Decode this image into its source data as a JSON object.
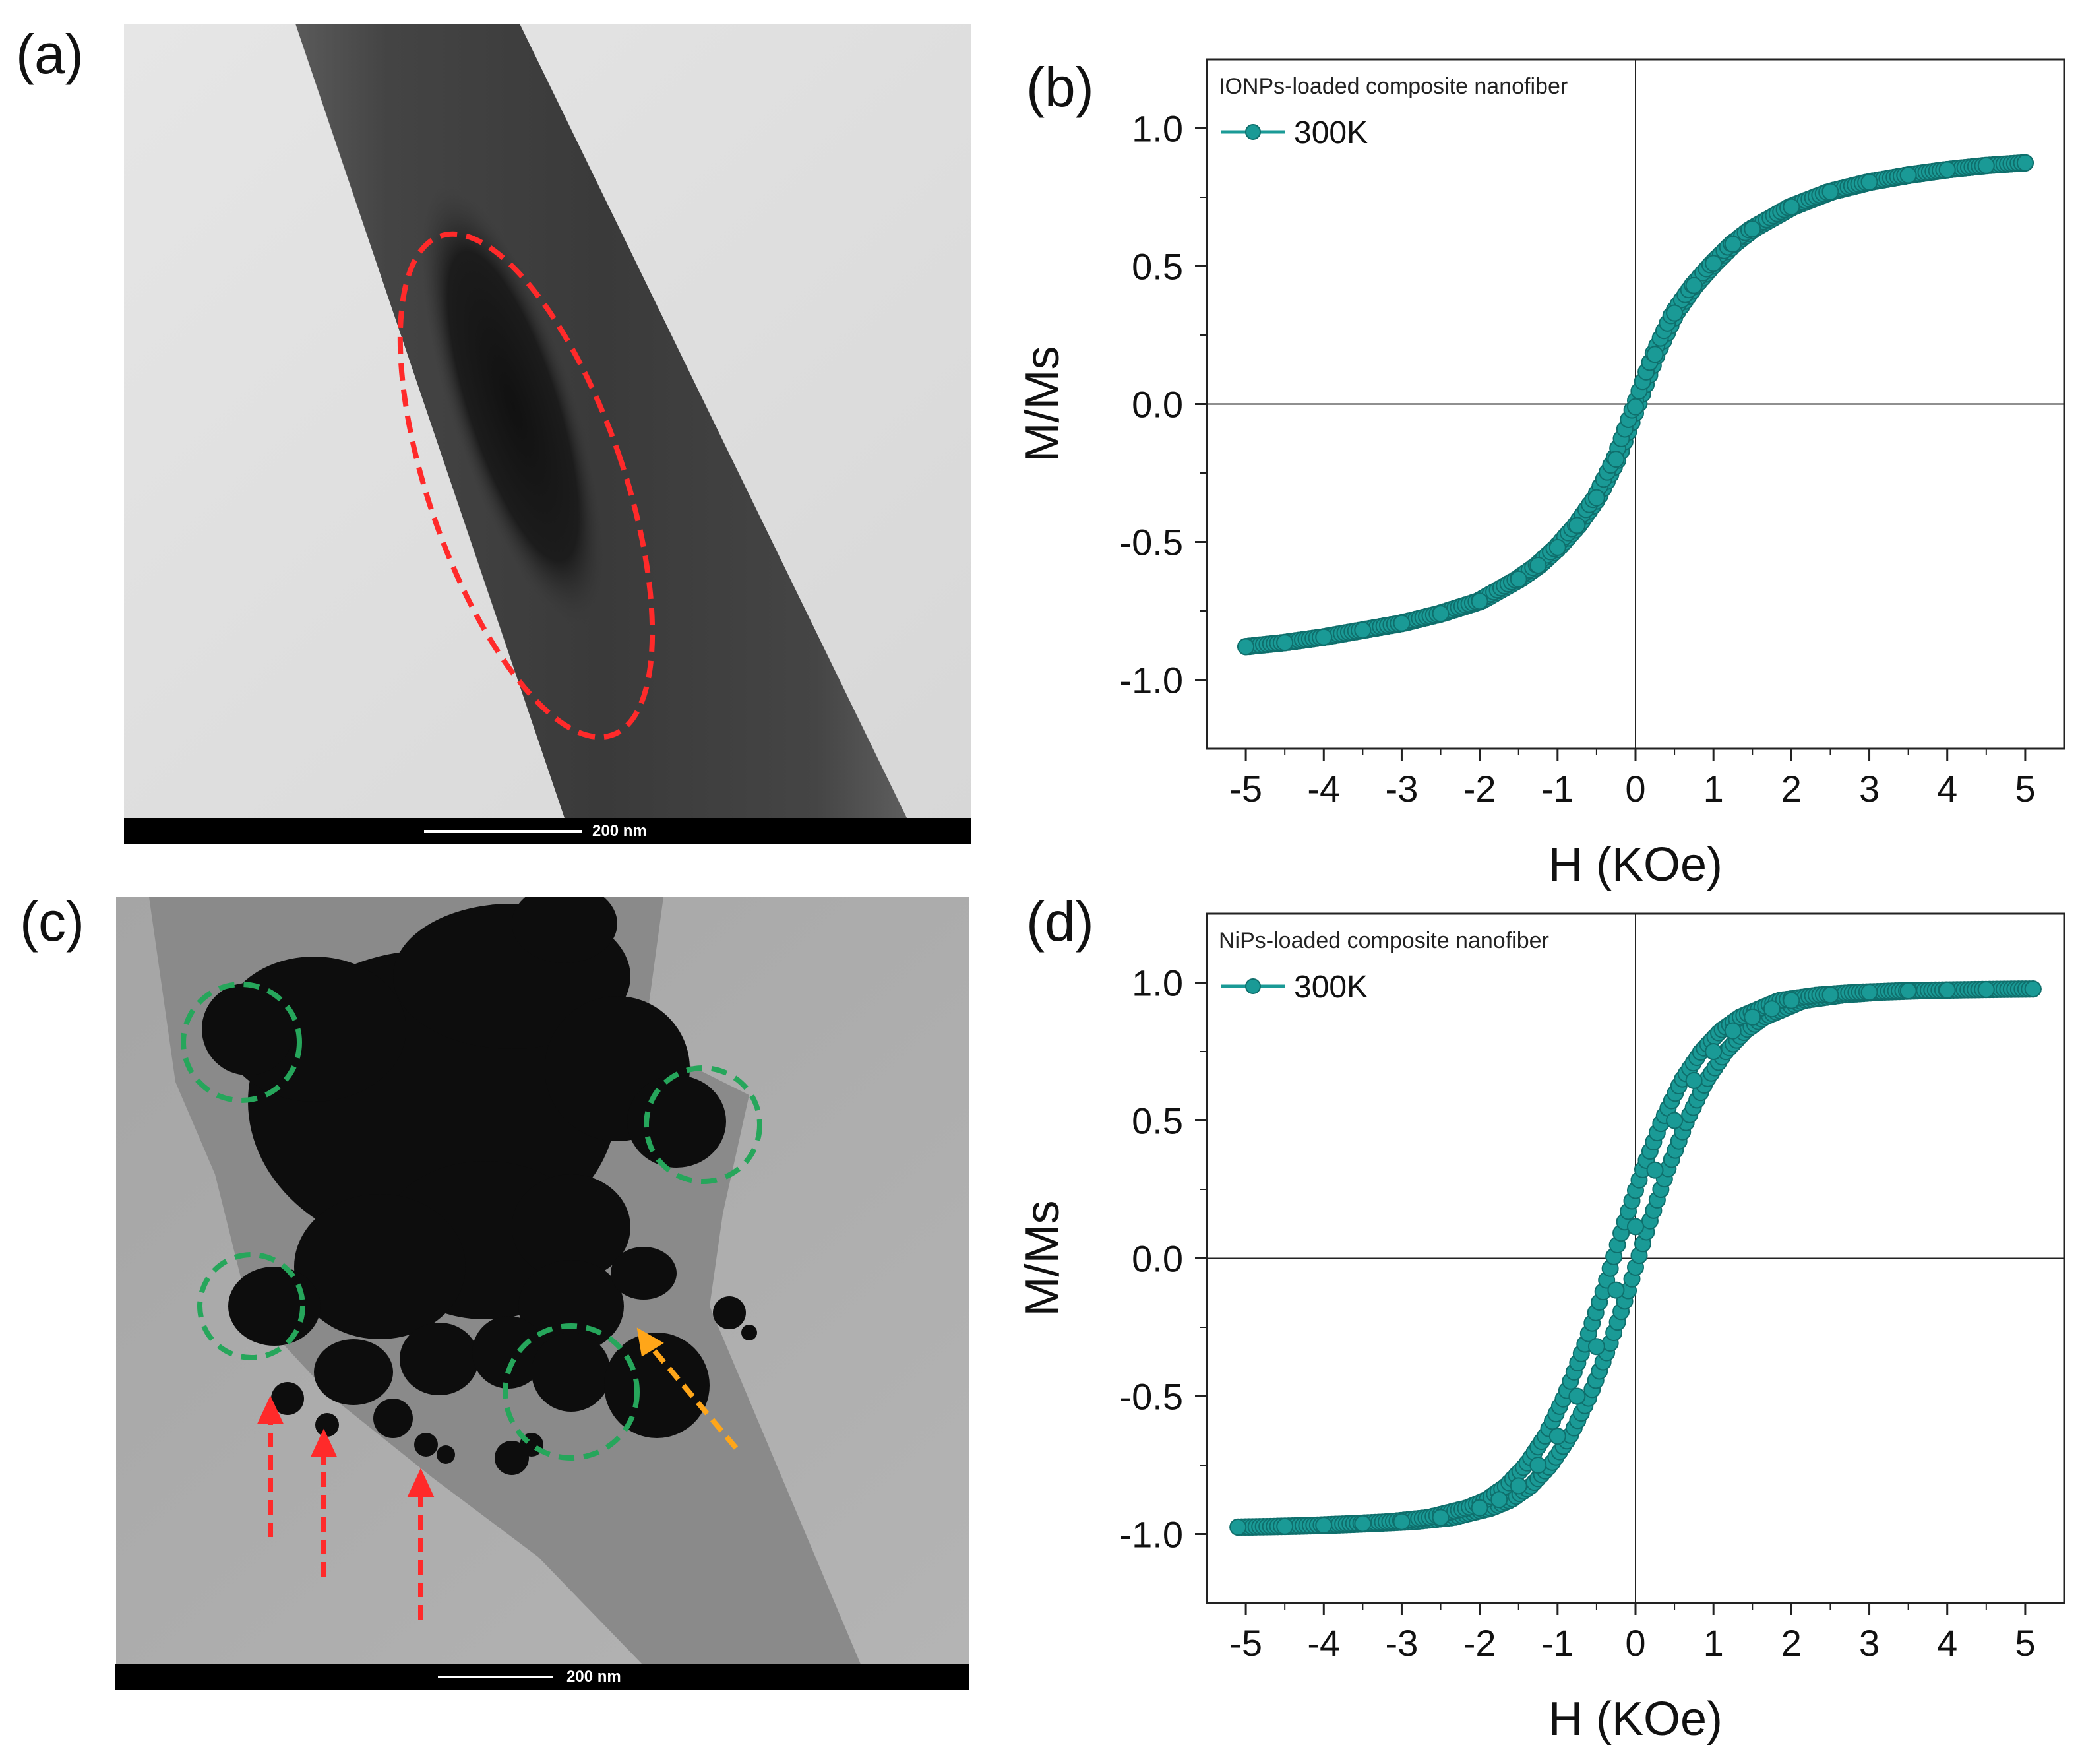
{
  "panels": {
    "a": "(a)",
    "b": "(b)",
    "c": "(c)",
    "d": "(d)"
  },
  "tem": {
    "a_scale": "200 nm",
    "c_scale": "200 nm"
  },
  "colors": {
    "curve": "#1a9a96",
    "red_marker": "#ff2a2a",
    "green_marker": "#26a65b",
    "orange_marker": "#ffa619"
  },
  "chart_data": [
    {
      "type": "line",
      "panel": "b",
      "legend_title": "IONPs-loaded composite nanofiber",
      "series": [
        {
          "name": "300K",
          "x": [
            -5,
            -4.5,
            -4,
            -3.5,
            -3,
            -2.5,
            -2,
            -1.5,
            -1.25,
            -1,
            -0.75,
            -0.5,
            -0.25,
            0,
            0.25,
            0.5,
            0.75,
            1,
            1.25,
            1.5,
            2,
            2.5,
            3,
            3.5,
            4,
            4.5,
            5
          ],
          "y": [
            -0.88,
            -0.865,
            -0.845,
            -0.82,
            -0.795,
            -0.76,
            -0.715,
            -0.635,
            -0.585,
            -0.52,
            -0.44,
            -0.34,
            -0.2,
            -0.01,
            0.18,
            0.33,
            0.43,
            0.51,
            0.58,
            0.635,
            0.715,
            0.77,
            0.805,
            0.83,
            0.85,
            0.865,
            0.875
          ]
        }
      ],
      "xlabel": "H (KOe)",
      "ylabel": "M/Ms",
      "xlim": [
        -5.5,
        5.5
      ],
      "ylim": [
        -1.25,
        1.25
      ],
      "xticks": [
        -5,
        -4,
        -3,
        -2,
        -1,
        0,
        1,
        2,
        3,
        4,
        5
      ],
      "yticks": [
        -1.0,
        -0.5,
        0.0,
        0.5,
        1.0
      ],
      "ytick_labels": [
        "-1.0",
        "-0.5",
        "0.0",
        "0.5",
        "1.0"
      ],
      "xtick_labels": [
        "-5",
        "-4",
        "-3",
        "-2",
        "-1",
        "0",
        "1",
        "2",
        "3",
        "4",
        "5"
      ],
      "loop_halfwidth": 0.03
    },
    {
      "type": "line",
      "panel": "d",
      "legend_title": "NiPs-loaded composite nanofiber",
      "series": [
        {
          "name": "300K",
          "x": [
            -5.1,
            -4.5,
            -4,
            -3.5,
            -3,
            -2.5,
            -2,
            -1.75,
            -1.5,
            -1.25,
            -1,
            -0.75,
            -0.5,
            -0.25,
            0,
            0.25,
            0.5,
            0.75,
            1,
            1.25,
            1.5,
            1.75,
            2,
            2.5,
            3,
            3.5,
            4,
            4.5,
            5.1
          ],
          "y": [
            -0.975,
            -0.972,
            -0.968,
            -0.962,
            -0.955,
            -0.94,
            -0.905,
            -0.875,
            -0.825,
            -0.75,
            -0.645,
            -0.5,
            -0.32,
            -0.115,
            0.115,
            0.32,
            0.5,
            0.645,
            0.75,
            0.825,
            0.875,
            0.905,
            0.935,
            0.955,
            0.965,
            0.97,
            0.973,
            0.975,
            0.977
          ]
        }
      ],
      "xlabel": "H (KOe)",
      "ylabel": "M/Ms",
      "xlim": [
        -5.5,
        5.5
      ],
      "ylim": [
        -1.25,
        1.25
      ],
      "xticks": [
        -5,
        -4,
        -3,
        -2,
        -1,
        0,
        1,
        2,
        3,
        4,
        5
      ],
      "yticks": [
        -1.0,
        -0.5,
        0.0,
        0.5,
        1.0
      ],
      "ytick_labels": [
        "-1.0",
        "-0.5",
        "0.0",
        "0.5",
        "1.0"
      ],
      "xtick_labels": [
        "-5",
        "-4",
        "-3",
        "-2",
        "-1",
        "0",
        "1",
        "2",
        "3",
        "4",
        "5"
      ],
      "loop_halfwidth": 0.16
    }
  ]
}
